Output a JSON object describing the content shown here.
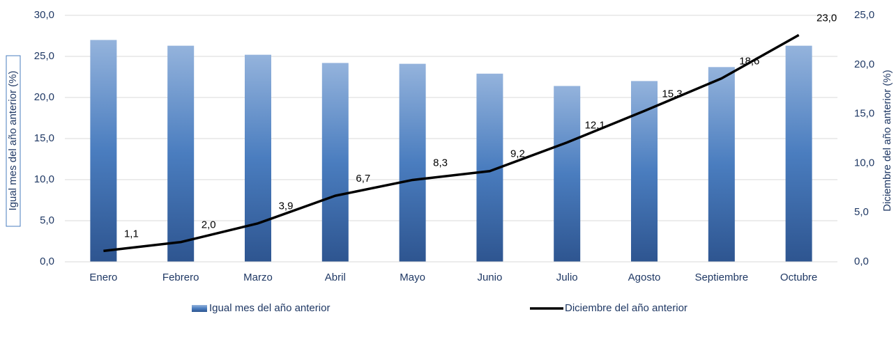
{
  "chart_data": {
    "type": "combo",
    "categories": [
      "Enero",
      "Febrero",
      "Marzo",
      "Abril",
      "Mayo",
      "Junio",
      "Julio",
      "Agosto",
      "Septiembre",
      "Octubre"
    ],
    "series": [
      {
        "name": "Igual mes del año anterior",
        "type": "bar",
        "axis": "y",
        "color": "#4a7dbf",
        "values": [
          27.0,
          26.3,
          25.2,
          24.2,
          24.1,
          22.9,
          21.4,
          22.0,
          23.7,
          26.3
        ]
      },
      {
        "name": "Diciembre del año anterior",
        "type": "line",
        "axis": "y2",
        "color": "#000000",
        "values": [
          1.1,
          2.0,
          3.9,
          6.7,
          8.3,
          9.2,
          12.1,
          15.3,
          18.6,
          23.0
        ],
        "value_labels": [
          "1,1",
          "2,0",
          "3,9",
          "6,7",
          "8,3",
          "9,2",
          "12,1",
          "15,3",
          "18,6",
          "23,0"
        ]
      }
    ],
    "y_label": "Igual mes del año anterior (%)",
    "y2_label": "Diciembre del año anterior (%)",
    "ylim": [
      0,
      30
    ],
    "yticks": [
      {
        "value": 0,
        "label": "0,0"
      },
      {
        "value": 5,
        "label": "5,0"
      },
      {
        "value": 10,
        "label": "10,0"
      },
      {
        "value": 15,
        "label": "15,0"
      },
      {
        "value": 20,
        "label": "20,0"
      },
      {
        "value": 25,
        "label": "25,0"
      },
      {
        "value": 30,
        "label": "30,0"
      }
    ],
    "y2lim": [
      0,
      25
    ],
    "y2ticks": [
      {
        "value": 0,
        "label": "0,0"
      },
      {
        "value": 5,
        "label": "5,0"
      },
      {
        "value": 10,
        "label": "10,0"
      },
      {
        "value": 15,
        "label": "15,0"
      },
      {
        "value": 20,
        "label": "20,0"
      },
      {
        "value": 25,
        "label": "25,0"
      }
    ],
    "grid": true
  }
}
